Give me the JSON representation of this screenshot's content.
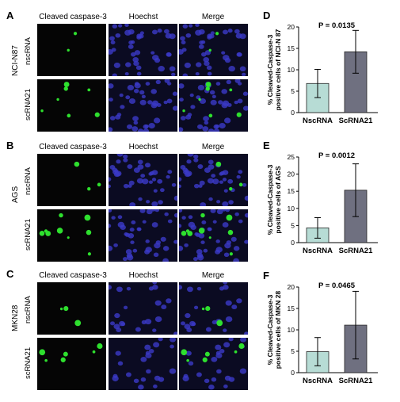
{
  "figure": {
    "column_headers": [
      "Cleaved caspase-3",
      "Hoechst",
      "Merge"
    ],
    "rows": [
      {
        "letter": "A",
        "cell_line": "NCI-N87",
        "labels": [
          "nscRNA",
          "scRNA21"
        ]
      },
      {
        "letter": "B",
        "cell_line": "AGS",
        "labels": [
          "nscRNA",
          "scRNA21"
        ]
      },
      {
        "letter": "C",
        "cell_line": "MKN28",
        "labels": [
          "nscRNA",
          "scRNA21"
        ]
      }
    ],
    "colors": {
      "green": "#2ee02e",
      "blue": "#3b39c8",
      "bar1": "#b7dcd5",
      "bar2": "#6f7080"
    }
  },
  "chart_data": [
    {
      "letter": "D",
      "type": "bar",
      "categories": [
        "NscRNA",
        "ScRNA21"
      ],
      "values": [
        6.8,
        14.2
      ],
      "errors": [
        3.3,
        5.0
      ],
      "ylabel": "% Cleaved-Caspase-3\npositive cells of NCI-N 87",
      "ylim": [
        0,
        20
      ],
      "yticks": [
        0,
        5,
        10,
        15,
        20
      ],
      "annotation": "P = 0.0135"
    },
    {
      "letter": "E",
      "type": "bar",
      "categories": [
        "NscRNA",
        "ScRNA21"
      ],
      "values": [
        4.3,
        15.3
      ],
      "errors": [
        3.0,
        7.7
      ],
      "ylabel": "% Cleaved-Caspase-3\npositive cells of AGS",
      "ylim": [
        0,
        25
      ],
      "yticks": [
        0,
        5,
        10,
        15,
        20,
        25
      ],
      "annotation": "P = 0.0012"
    },
    {
      "letter": "F",
      "type": "bar",
      "categories": [
        "NscRNA",
        "ScRNA21"
      ],
      "values": [
        4.9,
        11.1
      ],
      "errors": [
        3.3,
        7.9
      ],
      "ylabel": "% Cleaved-Caspase-3\npositive cells of MKN 28",
      "ylim": [
        0,
        20
      ],
      "yticks": [
        0,
        5,
        10,
        15,
        20
      ],
      "annotation": "P = 0.0465"
    }
  ]
}
